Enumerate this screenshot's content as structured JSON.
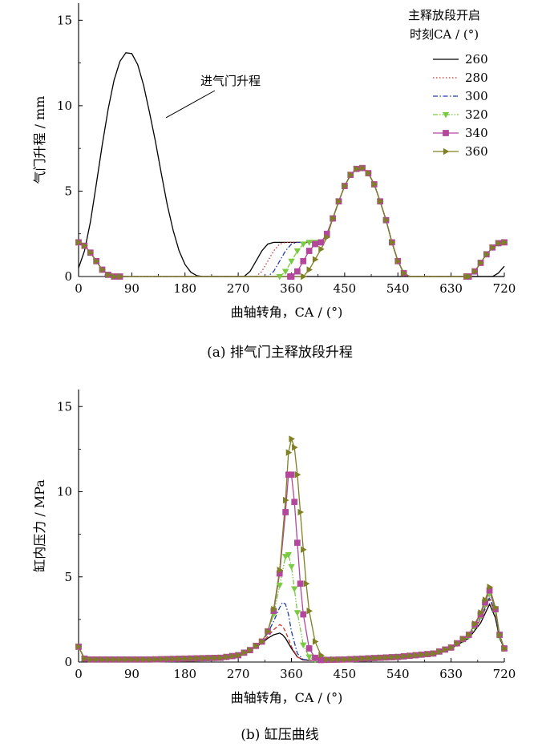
{
  "chart_data": [
    {
      "type": "line",
      "caption": "(a)  排气门主释放段升程",
      "xlabel": "曲轴转角，CA / (°)",
      "ylabel": "气门升程 / mm",
      "xlim": [
        0,
        720
      ],
      "ylim": [
        0,
        16
      ],
      "xticks": [
        0,
        90,
        180,
        270,
        360,
        450,
        540,
        630,
        720
      ],
      "yticks": [
        0,
        5,
        10,
        15
      ],
      "grid": false,
      "legend": {
        "title_line1": "主释放段开启",
        "title_line2": "时刻CA / (°)",
        "position": "top-right"
      },
      "annotation": {
        "text": "进气门升程",
        "points_to": [
          148,
          9.3
        ]
      },
      "intake_lift": {
        "name": "进气门升程",
        "x": [
          0,
          10,
          20,
          30,
          40,
          50,
          60,
          70,
          80,
          90,
          100,
          110,
          120,
          130,
          140,
          150,
          160,
          170,
          180,
          190,
          200,
          210,
          220,
          230,
          720
        ],
        "y": [
          0.5,
          1.5,
          3.2,
          5.4,
          7.7,
          9.8,
          11.5,
          12.6,
          13.1,
          13.05,
          12.4,
          11.2,
          9.6,
          7.9,
          6.0,
          4.2,
          2.7,
          1.5,
          0.7,
          0.25,
          0.05,
          0,
          0,
          0,
          0
        ]
      },
      "series": [
        {
          "name": "260",
          "color": "#000000",
          "dash": "solid",
          "marker": "none",
          "x": [
            0,
            10,
            20,
            30,
            40,
            50,
            60,
            70,
            280,
            290,
            300,
            310,
            320,
            330,
            410,
            420,
            430,
            440,
            450,
            460,
            470,
            480,
            490,
            500,
            510,
            520,
            530,
            540,
            550,
            560,
            700,
            710,
            720
          ],
          "y": [
            2.0,
            1.8,
            1.4,
            0.9,
            0.4,
            0.1,
            0,
            0,
            0,
            0.3,
            0.9,
            1.5,
            1.9,
            2.0,
            2.0,
            2.5,
            3.4,
            4.4,
            5.3,
            5.95,
            6.3,
            6.35,
            6.05,
            5.4,
            4.4,
            3.3,
            2.0,
            0.9,
            0.2,
            0,
            0,
            0.2,
            0.6
          ]
        },
        {
          "name": "280",
          "color": "#d0312d",
          "dash": "dot",
          "marker": "none",
          "x": [
            0,
            10,
            20,
            30,
            40,
            50,
            60,
            70,
            300,
            310,
            320,
            330,
            340,
            350,
            410,
            420,
            430,
            440,
            450,
            460,
            470,
            480,
            490,
            500,
            510,
            520,
            530,
            540,
            550,
            560,
            660,
            670,
            680,
            690,
            700,
            710,
            720
          ],
          "y": [
            2.0,
            1.8,
            1.4,
            0.9,
            0.4,
            0.1,
            0,
            0,
            0,
            0.3,
            0.9,
            1.5,
            1.9,
            2.0,
            2.0,
            2.5,
            3.4,
            4.4,
            5.3,
            5.95,
            6.3,
            6.35,
            6.05,
            5.4,
            4.4,
            3.3,
            2.0,
            0.9,
            0.2,
            0,
            0,
            0.3,
            0.8,
            1.3,
            1.7,
            1.95,
            2.0
          ]
        },
        {
          "name": "300",
          "color": "#1f3fae",
          "dash": "dashdot",
          "marker": "none",
          "x": [
            0,
            10,
            20,
            30,
            40,
            50,
            60,
            70,
            320,
            330,
            340,
            350,
            360,
            370,
            410,
            420,
            430,
            440,
            450,
            460,
            470,
            480,
            490,
            500,
            510,
            520,
            530,
            540,
            550,
            560,
            660,
            670,
            680,
            690,
            700,
            710,
            720
          ],
          "y": [
            2.0,
            1.8,
            1.4,
            0.9,
            0.4,
            0.1,
            0,
            0,
            0,
            0.3,
            0.9,
            1.5,
            1.9,
            2.0,
            2.0,
            2.5,
            3.4,
            4.4,
            5.3,
            5.95,
            6.3,
            6.35,
            6.05,
            5.4,
            4.4,
            3.3,
            2.0,
            0.9,
            0.2,
            0,
            0,
            0.3,
            0.8,
            1.3,
            1.7,
            1.95,
            2.0
          ]
        },
        {
          "name": "320",
          "color": "#7ac943",
          "dash": "dashdotdot",
          "marker": "triangle-down",
          "x": [
            0,
            10,
            20,
            30,
            40,
            50,
            60,
            70,
            340,
            350,
            360,
            370,
            380,
            390,
            410,
            420,
            430,
            440,
            450,
            460,
            470,
            480,
            490,
            500,
            510,
            520,
            530,
            540,
            550,
            560,
            660,
            670,
            680,
            690,
            700,
            710,
            720
          ],
          "y": [
            2.0,
            1.8,
            1.4,
            0.9,
            0.4,
            0.1,
            0,
            0,
            0,
            0.3,
            0.9,
            1.5,
            1.9,
            2.0,
            2.0,
            2.5,
            3.4,
            4.4,
            5.3,
            5.95,
            6.3,
            6.35,
            6.05,
            5.4,
            4.4,
            3.3,
            2.0,
            0.9,
            0.2,
            0,
            0,
            0.3,
            0.8,
            1.3,
            1.7,
            1.95,
            2.0
          ]
        },
        {
          "name": "340",
          "color": "#b3479b",
          "dash": "solid",
          "marker": "square",
          "x": [
            0,
            10,
            20,
            30,
            40,
            50,
            60,
            70,
            360,
            370,
            380,
            390,
            400,
            410,
            420,
            430,
            440,
            450,
            460,
            470,
            480,
            490,
            500,
            510,
            520,
            530,
            540,
            550,
            560,
            660,
            670,
            680,
            690,
            700,
            710,
            720
          ],
          "y": [
            2.0,
            1.8,
            1.4,
            0.9,
            0.4,
            0.1,
            0,
            0,
            0,
            0.3,
            0.9,
            1.5,
            1.9,
            2.0,
            2.5,
            3.4,
            4.4,
            5.3,
            5.95,
            6.3,
            6.35,
            6.05,
            5.4,
            4.4,
            3.3,
            2.0,
            0.9,
            0.2,
            0,
            0,
            0.3,
            0.8,
            1.3,
            1.7,
            1.95,
            2.0
          ]
        },
        {
          "name": "360",
          "color": "#7f7f24",
          "dash": "solid",
          "marker": "triangle-right",
          "x": [
            0,
            10,
            20,
            30,
            40,
            50,
            60,
            70,
            380,
            390,
            400,
            410,
            420,
            430,
            440,
            450,
            460,
            470,
            480,
            490,
            500,
            510,
            520,
            530,
            540,
            550,
            560,
            660,
            670,
            680,
            690,
            700,
            710,
            720
          ],
          "y": [
            2.0,
            1.8,
            1.4,
            0.9,
            0.4,
            0.1,
            0,
            0,
            0,
            0.4,
            1.0,
            1.6,
            2.3,
            3.4,
            4.4,
            5.3,
            5.95,
            6.3,
            6.35,
            6.05,
            5.4,
            4.4,
            3.3,
            2.0,
            0.9,
            0.2,
            0,
            0,
            0.3,
            0.8,
            1.3,
            1.7,
            1.95,
            2.0
          ]
        }
      ]
    },
    {
      "type": "line",
      "caption": "(b)  缸压曲线",
      "xlabel": "曲轴转角，CA / (°)",
      "ylabel": "缸内压力 / MPa",
      "xlim": [
        0,
        720
      ],
      "ylim": [
        0,
        16
      ],
      "xticks": [
        0,
        90,
        180,
        270,
        360,
        450,
        540,
        630,
        720
      ],
      "yticks": [
        0,
        5,
        10,
        15
      ],
      "grid": false,
      "series": [
        {
          "name": "260",
          "color": "#000000",
          "dash": "solid",
          "marker": "none",
          "x": [
            0,
            10,
            20,
            60,
            120,
            180,
            240,
            270,
            290,
            310,
            320,
            330,
            340,
            345,
            350,
            360,
            370,
            380,
            400,
            450,
            540,
            600,
            630,
            660,
            680,
            695,
            705,
            712,
            720
          ],
          "y": [
            0.9,
            0.2,
            0.15,
            0.15,
            0.15,
            0.2,
            0.25,
            0.4,
            0.7,
            1.1,
            1.4,
            1.6,
            1.7,
            1.6,
            1.4,
            0.8,
            0.3,
            0.12,
            0.1,
            0.15,
            0.3,
            0.5,
            0.8,
            1.4,
            2.3,
            3.4,
            2.6,
            1.4,
            0.8
          ]
        },
        {
          "name": "280",
          "color": "#d0312d",
          "dash": "dash",
          "marker": "none",
          "x": [
            0,
            10,
            20,
            60,
            120,
            180,
            240,
            270,
            290,
            310,
            320,
            330,
            340,
            345,
            350,
            360,
            370,
            380,
            400,
            450,
            540,
            600,
            630,
            660,
            680,
            695,
            705,
            712,
            720
          ],
          "y": [
            0.9,
            0.2,
            0.15,
            0.15,
            0.15,
            0.2,
            0.25,
            0.4,
            0.7,
            1.15,
            1.5,
            1.9,
            2.2,
            2.1,
            1.8,
            0.9,
            0.3,
            0.12,
            0.1,
            0.15,
            0.3,
            0.5,
            0.85,
            1.5,
            2.5,
            3.7,
            2.8,
            1.5,
            0.8
          ]
        },
        {
          "name": "300",
          "color": "#1f3fae",
          "dash": "dashdot",
          "marker": "none",
          "x": [
            0,
            10,
            20,
            60,
            120,
            180,
            240,
            270,
            290,
            310,
            320,
            330,
            340,
            345,
            350,
            355,
            360,
            370,
            380,
            400,
            450,
            540,
            600,
            630,
            660,
            680,
            695,
            705,
            712,
            720
          ],
          "y": [
            0.9,
            0.2,
            0.15,
            0.15,
            0.15,
            0.2,
            0.25,
            0.4,
            0.7,
            1.2,
            1.7,
            2.4,
            3.2,
            3.5,
            3.4,
            2.8,
            1.8,
            0.5,
            0.15,
            0.1,
            0.15,
            0.3,
            0.5,
            0.85,
            1.5,
            2.6,
            3.8,
            2.9,
            1.5,
            0.8
          ]
        },
        {
          "name": "320",
          "color": "#7ac943",
          "dash": "dashdotdot",
          "marker": "triangle-down",
          "x": [
            0,
            10,
            20,
            60,
            120,
            180,
            240,
            270,
            290,
            310,
            320,
            330,
            340,
            350,
            355,
            360,
            365,
            370,
            380,
            390,
            400,
            450,
            540,
            600,
            630,
            660,
            680,
            695,
            705,
            712,
            720
          ],
          "y": [
            0.9,
            0.2,
            0.15,
            0.15,
            0.15,
            0.2,
            0.25,
            0.4,
            0.7,
            1.2,
            1.8,
            2.8,
            4.5,
            6.2,
            6.3,
            5.6,
            4.3,
            2.9,
            1.0,
            0.3,
            0.12,
            0.15,
            0.3,
            0.5,
            0.85,
            1.5,
            2.7,
            4.0,
            3.0,
            1.5,
            0.8
          ]
        },
        {
          "name": "340",
          "color": "#b3479b",
          "dash": "solid",
          "marker": "square",
          "x": [
            0,
            10,
            20,
            60,
            120,
            180,
            240,
            270,
            290,
            310,
            320,
            330,
            340,
            350,
            355,
            360,
            365,
            370,
            375,
            380,
            390,
            400,
            410,
            450,
            540,
            600,
            630,
            660,
            680,
            695,
            705,
            712,
            720
          ],
          "y": [
            0.9,
            0.2,
            0.15,
            0.15,
            0.15,
            0.2,
            0.25,
            0.4,
            0.7,
            1.2,
            1.8,
            3.0,
            5.2,
            8.8,
            11.0,
            11.0,
            9.4,
            7.0,
            4.6,
            2.8,
            0.8,
            0.25,
            0.12,
            0.15,
            0.3,
            0.5,
            0.85,
            1.6,
            2.8,
            4.2,
            3.1,
            1.6,
            0.8
          ]
        },
        {
          "name": "360",
          "color": "#7f7f24",
          "dash": "solid",
          "marker": "triangle-right",
          "x": [
            0,
            10,
            20,
            60,
            120,
            180,
            240,
            270,
            290,
            310,
            320,
            330,
            340,
            350,
            355,
            360,
            365,
            370,
            375,
            380,
            385,
            390,
            400,
            410,
            420,
            450,
            540,
            600,
            630,
            660,
            680,
            695,
            705,
            712,
            720
          ],
          "y": [
            0.9,
            0.2,
            0.15,
            0.15,
            0.15,
            0.2,
            0.25,
            0.4,
            0.7,
            1.2,
            1.8,
            3.1,
            5.4,
            9.5,
            12.3,
            13.1,
            12.6,
            11.0,
            8.8,
            6.6,
            4.6,
            3.0,
            1.2,
            0.4,
            0.15,
            0.15,
            0.3,
            0.5,
            0.85,
            1.6,
            2.9,
            4.4,
            3.2,
            1.6,
            0.8
          ]
        }
      ]
    }
  ]
}
